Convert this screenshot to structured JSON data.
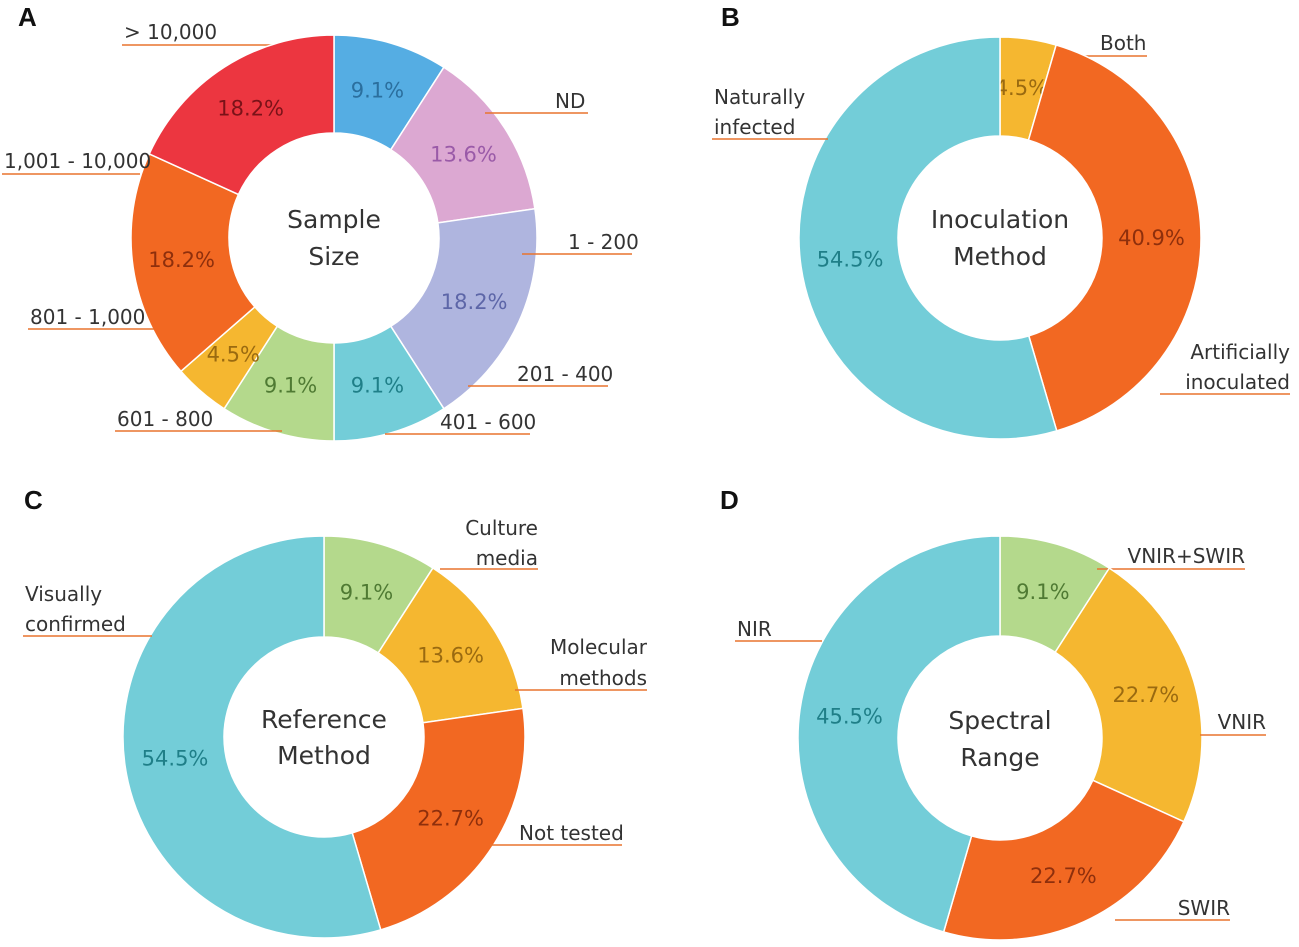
{
  "chart_data": [
    {
      "type": "pie",
      "panel": "A",
      "title": "Sample Size",
      "title_lines": [
        "Sample",
        "Size"
      ],
      "slices": [
        {
          "label": "> 10,000",
          "value": 9.1,
          "value_label": "9.1%",
          "color": "#55ade3",
          "label_color": "#2b6f9e"
        },
        {
          "label": "ND",
          "value": 13.6,
          "value_label": "13.6%",
          "color": "#dca8d2",
          "label_color": "#9a5aa8"
        },
        {
          "label": "1 - 200",
          "value": 18.2,
          "value_label": "18.2%",
          "color": "#afb5df",
          "label_color": "#5d66a8"
        },
        {
          "label": "201 - 400",
          "value": 9.1,
          "value_label": "9.1%",
          "color": "#73cdd8",
          "label_color": "#1f7f88"
        },
        {
          "label": "401 - 600",
          "value": 9.1,
          "value_label": "9.1%",
          "color": "#b4d98c",
          "label_color": "#4f7a33"
        },
        {
          "label": "601 - 800",
          "value": 4.5,
          "value_label": "4.5%",
          "color": "#f5b730",
          "label_color": "#9a6a10"
        },
        {
          "label": "801 - 1,000",
          "value": 18.2,
          "value_label": "18.2%",
          "color": "#f26822",
          "label_color": "#8e2f0c"
        },
        {
          "label": "1,001 - 10,000",
          "value": 18.2,
          "value_label": "18.2%",
          "color": "#ec3640",
          "label_color": "#7a1218"
        }
      ]
    },
    {
      "type": "pie",
      "panel": "B",
      "title": "Inoculation Method",
      "title_lines": [
        "Inoculation",
        "Method"
      ],
      "slices": [
        {
          "label": "Both",
          "value": 4.5,
          "value_label": "4.5%",
          "color": "#f5b730",
          "label_color": "#9a6a10"
        },
        {
          "label": "Artificially inoculated",
          "label_lines": [
            "Artificially",
            "inoculated"
          ],
          "value": 40.9,
          "value_label": "40.9%",
          "color": "#f26822",
          "label_color": "#8e2f0c"
        },
        {
          "label": "Naturally infected",
          "label_lines": [
            "Naturally",
            "infected"
          ],
          "value": 54.5,
          "value_label": "54.5%",
          "color": "#73cdd8",
          "label_color": "#1f7f88"
        }
      ]
    },
    {
      "type": "pie",
      "panel": "C",
      "title": "Reference Method",
      "title_lines": [
        "Reference",
        "Method"
      ],
      "slices": [
        {
          "label": "Culture media",
          "label_lines": [
            "Culture",
            "media"
          ],
          "value": 9.1,
          "value_label": "9.1%",
          "color": "#b4d98c",
          "label_color": "#4f7a33"
        },
        {
          "label": "Molecular methods",
          "label_lines": [
            "Molecular",
            "methods"
          ],
          "value": 13.6,
          "value_label": "13.6%",
          "color": "#f5b730",
          "label_color": "#9a6a10"
        },
        {
          "label": "Not tested",
          "value": 22.7,
          "value_label": "22.7%",
          "color": "#f26822",
          "label_color": "#8e2f0c"
        },
        {
          "label": "Visually confirmed",
          "label_lines": [
            "Visually",
            "confirmed"
          ],
          "value": 54.5,
          "value_label": "54.5%",
          "color": "#73cdd8",
          "label_color": "#1f7f88"
        }
      ]
    },
    {
      "type": "pie",
      "panel": "D",
      "title": "Spectral Range",
      "title_lines": [
        "Spectral",
        "Range"
      ],
      "slices": [
        {
          "label": "VNIR+SWIR",
          "value": 9.1,
          "value_label": "9.1%",
          "color": "#b4d98c",
          "label_color": "#4f7a33"
        },
        {
          "label": "VNIR",
          "value": 22.7,
          "value_label": "22.7%",
          "color": "#f5b730",
          "label_color": "#9a6a10"
        },
        {
          "label": "SWIR",
          "value": 22.7,
          "value_label": "22.7%",
          "color": "#f26822",
          "label_color": "#8e2f0c"
        },
        {
          "label": "NIR",
          "value": 45.5,
          "value_label": "45.5%",
          "color": "#73cdd8",
          "label_color": "#1f7f88"
        }
      ]
    }
  ]
}
